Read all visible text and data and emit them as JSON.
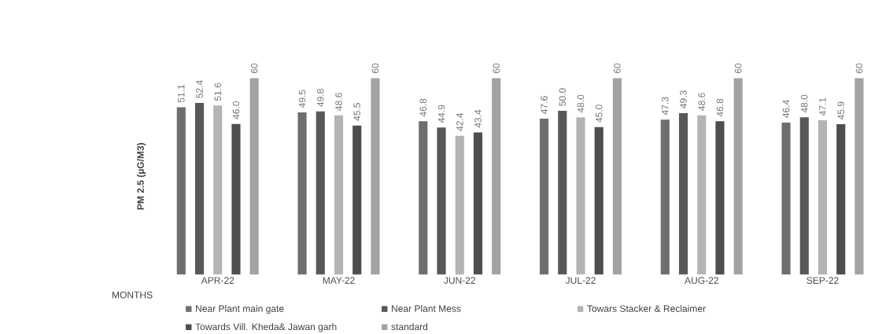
{
  "chart_data": {
    "type": "bar",
    "ylabel": "PM 2.5 (µG/M3)",
    "xlabel": "MONTHS",
    "categories": [
      "APR-22",
      "MAY-22",
      "JUN-22",
      "JUL-22",
      "AUG-22",
      "SEP-22"
    ],
    "series": [
      {
        "name": "Near Plant main gate",
        "color": "#6e6e6e",
        "values": [
          51.1,
          49.5,
          46.8,
          47.6,
          47.3,
          46.4
        ],
        "value_labels": [
          "51.1",
          "49.5",
          "46.8",
          "47.6",
          "47.3",
          "46.4"
        ]
      },
      {
        "name": "Near Plant Mess",
        "color": "#585858",
        "values": [
          52.4,
          49.8,
          44.9,
          50.0,
          49.3,
          48.0
        ],
        "value_labels": [
          "52.4",
          "49.8",
          "44.9",
          "50.0",
          "49.3",
          "48.0"
        ]
      },
      {
        "name": "Towars Stacker & Reclaimer",
        "color": "#b4b4b4",
        "values": [
          51.6,
          48.6,
          42.4,
          48.0,
          48.6,
          47.1
        ],
        "value_labels": [
          "51.6",
          "48.6",
          "42.4",
          "48.0",
          "48.6",
          "47.1"
        ]
      },
      {
        "name": "Towards Vill. Kheda& Jawan garh",
        "color": "#4e4e4e",
        "values": [
          46.0,
          45.5,
          43.4,
          45.0,
          46.8,
          45.9
        ],
        "value_labels": [
          "46.0",
          "45.5",
          "43.4",
          "45.0",
          "46.8",
          "45.9"
        ]
      },
      {
        "name": "standard",
        "color": "#a2a2a2",
        "values": [
          60,
          60,
          60,
          60,
          60,
          60
        ],
        "value_labels": [
          "60",
          "60",
          "60",
          "60",
          "60",
          "60"
        ]
      }
    ],
    "ylim": [
      0,
      60
    ],
    "tick_labels": "x",
    "legend": "bottom"
  }
}
